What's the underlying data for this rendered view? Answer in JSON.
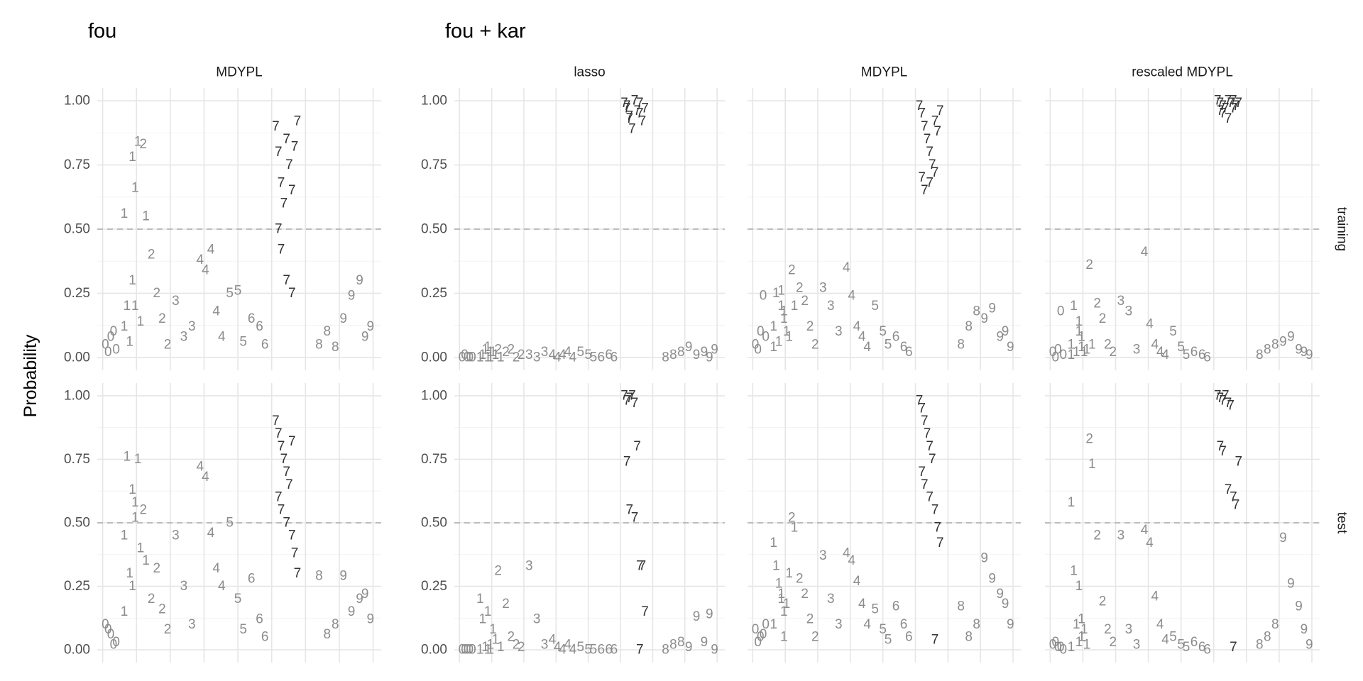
{
  "chart_data": {
    "type": "scatter",
    "groups": [
      "fou",
      "fou + kar"
    ],
    "panel_titles": [
      "MDYPL",
      "lasso",
      "MDYPL",
      "rescaled MDYPL"
    ],
    "row_labels": [
      "training",
      "test"
    ],
    "y_label": "Probability",
    "ylim": [
      -0.05,
      1.05
    ],
    "yticks": [
      {
        "value": 0,
        "label": "0.00"
      },
      {
        "value": 0.25,
        "label": "0.25"
      },
      {
        "value": 0.5,
        "label": "0.50"
      },
      {
        "value": 0.75,
        "label": "0.75"
      },
      {
        "value": 1,
        "label": "1.00"
      }
    ],
    "y_minor": [
      0.125,
      0.375,
      0.625,
      0.875
    ],
    "xlim": [
      -2,
      103
    ],
    "xticks": [
      0,
      12.5,
      25,
      37.5,
      50,
      62.5,
      75,
      87.5,
      100
    ],
    "reference_line": 0.5,
    "color": "#8c8c8c",
    "highlight_label": "7",
    "highlight_color": "#333333",
    "grid": true,
    "rows": [
      {
        "x": [
          1,
          3,
          5,
          2,
          4,
          8,
          9,
          10,
          11,
          12,
          14,
          8,
          11,
          12,
          13,
          15,
          16,
          18,
          20,
          22,
          24,
          27,
          30,
          33,
          36,
          38,
          40,
          42,
          44,
          47,
          50,
          52,
          55,
          58,
          60,
          64,
          65,
          66,
          67,
          68,
          69,
          65,
          66,
          68,
          70,
          71,
          72,
          70,
          80,
          83,
          86,
          89,
          92,
          95,
          97,
          99
        ],
        "labels": [
          "0",
          "0",
          "0",
          "0",
          "0",
          "1",
          "1",
          "1",
          "1",
          "1",
          "1",
          "1",
          "1",
          "1",
          "1",
          "2",
          "1",
          "2",
          "2",
          "2",
          "2",
          "3",
          "3",
          "3",
          "4",
          "4",
          "4",
          "4",
          "4",
          "5",
          "5",
          "5",
          "6",
          "6",
          "6",
          "7",
          "7",
          "7",
          "7",
          "7",
          "7",
          "7",
          "7",
          "7",
          "7",
          "7",
          "7",
          "7",
          "8",
          "8",
          "8",
          "9",
          "9",
          "9",
          "9",
          "9"
        ],
        "values": [
          [
            0.05,
            0.08,
            0.03,
            0.02,
            0.1,
            0.12,
            0.2,
            0.06,
            0.3,
            0.2,
            0.14,
            0.56,
            0.78,
            0.66,
            0.84,
            0.83,
            0.55,
            0.4,
            0.25,
            0.15,
            0.05,
            0.22,
            0.08,
            0.12,
            0.38,
            0.34,
            0.42,
            0.18,
            0.08,
            0.25,
            0.26,
            0.06,
            0.15,
            0.12,
            0.05,
            0.9,
            0.8,
            0.68,
            0.6,
            0.85,
            0.75,
            0.5,
            0.42,
            0.3,
            0.65,
            0.82,
            0.92,
            0.25,
            0.05,
            0.1,
            0.04,
            0.15,
            0.24,
            0.3,
            0.08,
            0.12
          ],
          [
            0,
            0,
            0,
            0.01,
            0,
            0,
            0.01,
            0.03,
            0,
            0.02,
            0.01,
            0,
            0.04,
            0,
            0.02,
            0.03,
            0,
            0.02,
            0.03,
            0,
            0.01,
            0.01,
            0,
            0.02,
            0.01,
            0,
            0.01,
            0.02,
            0,
            0.02,
            0.01,
            0,
            0,
            0.01,
            0,
            0.99,
            0.97,
            0.93,
            0.89,
            1,
            0.96,
            0.98,
            0.94,
            1,
            0.99,
            0.92,
            0.97,
            0.95,
            0,
            0.01,
            0.02,
            0.04,
            0.01,
            0.02,
            0,
            0.03
          ],
          [
            0.05,
            0.1,
            0.08,
            0.03,
            0.24,
            0.12,
            0.25,
            0.06,
            0.2,
            0.15,
            0.08,
            0.04,
            0.26,
            0.18,
            0.1,
            0.34,
            0.2,
            0.27,
            0.22,
            0.12,
            0.05,
            0.27,
            0.2,
            0.1,
            0.35,
            0.24,
            0.12,
            0.08,
            0.04,
            0.2,
            0.1,
            0.05,
            0.08,
            0.04,
            0.02,
            0.98,
            0.95,
            0.9,
            0.85,
            0.8,
            0.75,
            0.7,
            0.65,
            0.68,
            0.92,
            0.88,
            0.96,
            0.72,
            0.05,
            0.12,
            0.18,
            0.15,
            0.19,
            0.08,
            0.1,
            0.04
          ],
          [
            0.02,
            0.03,
            0.01,
            0,
            0.18,
            0.05,
            0.2,
            0.02,
            0.14,
            0.08,
            0.03,
            0.01,
            0.1,
            0.04,
            0.02,
            0.36,
            0.05,
            0.21,
            0.15,
            0.05,
            0.02,
            0.22,
            0.18,
            0.03,
            0.41,
            0.13,
            0.05,
            0.02,
            0.01,
            0.1,
            0.04,
            0.01,
            0.02,
            0.01,
            0,
            1,
            0.99,
            0.98,
            0.97,
            1,
            0.99,
            0.96,
            0.95,
            0.93,
            1,
            0.98,
            0.99,
            0.97,
            0.01,
            0.03,
            0.05,
            0.06,
            0.08,
            0.03,
            0.02,
            0.01
          ]
        ]
      },
      {
        "x": [
          1,
          3,
          5,
          2,
          4,
          8,
          9,
          10,
          11,
          12,
          14,
          8,
          11,
          12,
          13,
          15,
          16,
          18,
          20,
          22,
          24,
          27,
          30,
          33,
          36,
          38,
          40,
          42,
          44,
          47,
          50,
          52,
          55,
          58,
          60,
          64,
          65,
          66,
          67,
          68,
          69,
          65,
          66,
          68,
          70,
          71,
          72,
          70,
          80,
          83,
          86,
          89,
          92,
          95,
          97,
          99
        ],
        "labels": [
          "0",
          "0",
          "0",
          "0",
          "0",
          "1",
          "1",
          "1",
          "1",
          "1",
          "1",
          "1",
          "1",
          "1",
          "1",
          "2",
          "1",
          "2",
          "2",
          "2",
          "2",
          "3",
          "3",
          "3",
          "4",
          "4",
          "4",
          "4",
          "4",
          "5",
          "5",
          "5",
          "6",
          "6",
          "6",
          "7",
          "7",
          "7",
          "7",
          "7",
          "7",
          "7",
          "7",
          "7",
          "7",
          "7",
          "7",
          "7",
          "8",
          "8",
          "8",
          "9",
          "9",
          "9",
          "9",
          "9"
        ],
        "values": [
          [
            0.1,
            0.06,
            0.03,
            0.08,
            0.02,
            0.15,
            0.76,
            0.3,
            0.63,
            0.58,
            0.4,
            0.45,
            0.25,
            0.52,
            0.75,
            0.55,
            0.35,
            0.2,
            0.32,
            0.16,
            0.08,
            0.45,
            0.25,
            0.1,
            0.72,
            0.68,
            0.46,
            0.32,
            0.25,
            0.5,
            0.2,
            0.08,
            0.28,
            0.12,
            0.05,
            0.9,
            0.85,
            0.8,
            0.75,
            0.7,
            0.65,
            0.6,
            0.55,
            0.5,
            0.45,
            0.38,
            0.3,
            0.82,
            0.29,
            0.06,
            0.1,
            0.29,
            0.15,
            0.2,
            0.22,
            0.12
          ],
          [
            0,
            0,
            0,
            0,
            0,
            0.2,
            0.12,
            0.01,
            0,
            0.02,
            0.04,
            0,
            0.15,
            0,
            0.08,
            0.31,
            0.01,
            0.18,
            0.05,
            0.02,
            0.01,
            0.33,
            0.12,
            0.02,
            0.04,
            0.01,
            0,
            0.02,
            0,
            0.01,
            0,
            0,
            0,
            0,
            0,
            1,
            0.98,
            0.99,
            1,
            0.97,
            0.8,
            0.74,
            0.55,
            0.52,
            0.33,
            0.33,
            0.15,
            0,
            0,
            0.02,
            0.03,
            0.01,
            0.13,
            0.03,
            0.14,
            0
          ],
          [
            0.08,
            0.05,
            0.1,
            0.03,
            0.06,
            0.42,
            0.33,
            0.26,
            0.2,
            0.15,
            0.3,
            0.1,
            0.22,
            0.05,
            0.18,
            0.52,
            0.48,
            0.28,
            0.22,
            0.12,
            0.05,
            0.37,
            0.2,
            0.1,
            0.38,
            0.35,
            0.27,
            0.18,
            0.1,
            0.16,
            0.08,
            0.04,
            0.17,
            0.1,
            0.05,
            0.98,
            0.95,
            0.9,
            0.85,
            0.8,
            0.75,
            0.7,
            0.65,
            0.6,
            0.55,
            0.48,
            0.42,
            0.04,
            0.17,
            0.05,
            0.1,
            0.36,
            0.28,
            0.22,
            0.18,
            0.1
          ],
          [
            0.02,
            0.01,
            0,
            0.03,
            0.01,
            0.58,
            0.31,
            0.1,
            0.03,
            0.12,
            0.02,
            0.01,
            0.25,
            0.05,
            0.08,
            0.83,
            0.73,
            0.45,
            0.19,
            0.08,
            0.03,
            0.45,
            0.08,
            0.02,
            0.47,
            0.42,
            0.21,
            0.1,
            0.04,
            0.05,
            0.02,
            0.01,
            0.03,
            0.01,
            0,
            1,
            0.99,
            0.98,
            1,
            0.97,
            0.96,
            0.8,
            0.78,
            0.63,
            0.6,
            0.57,
            0.74,
            0.01,
            0.02,
            0.05,
            0.1,
            0.44,
            0.26,
            0.17,
            0.08,
            0.02
          ]
        ]
      }
    ]
  }
}
